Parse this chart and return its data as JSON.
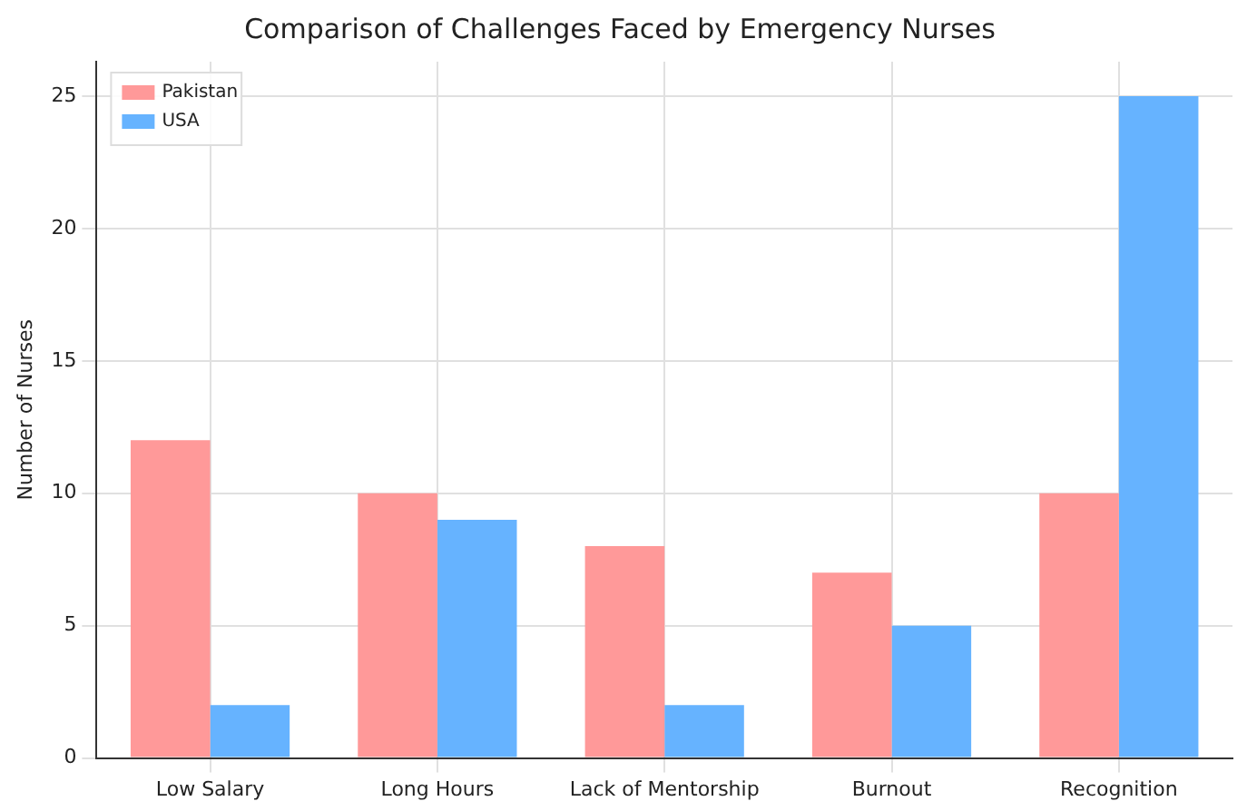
{
  "chart_data": {
    "type": "bar",
    "title": "Comparison of Challenges Faced by Emergency Nurses",
    "ylabel": "Number of Nurses",
    "categories": [
      "Low Salary",
      "Long Hours",
      "Lack of Mentorship",
      "Burnout",
      "Recognition"
    ],
    "series": [
      {
        "name": "Pakistan",
        "color": "#ff9999",
        "values": [
          12,
          10,
          8,
          7,
          10
        ]
      },
      {
        "name": "USA",
        "color": "#66b3ff",
        "values": [
          2,
          9,
          2,
          5,
          25
        ]
      }
    ],
    "ylim": [
      0,
      26.3
    ],
    "yticks": [
      0,
      5,
      10,
      15,
      20,
      25
    ],
    "grid": true,
    "legend": "top left"
  }
}
